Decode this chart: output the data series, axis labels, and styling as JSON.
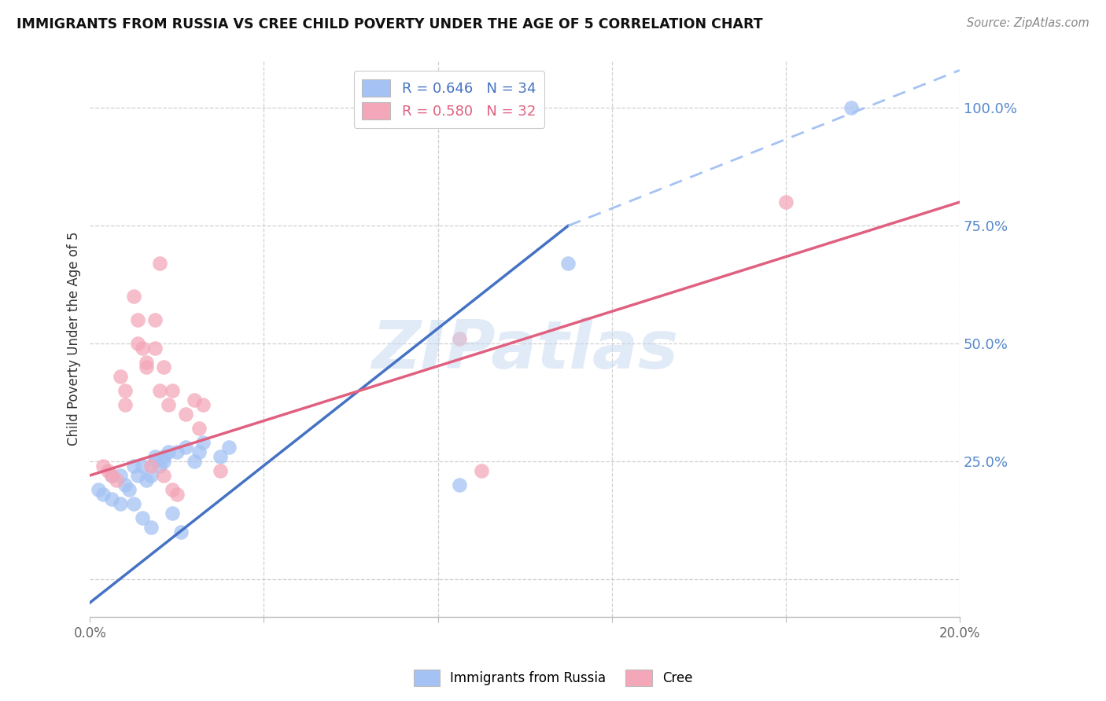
{
  "title": "IMMIGRANTS FROM RUSSIA VS CREE CHILD POVERTY UNDER THE AGE OF 5 CORRELATION CHART",
  "source": "Source: ZipAtlas.com",
  "ylabel": "Child Poverty Under the Age of 5",
  "legend_blue_r": "R = 0.646",
  "legend_blue_n": "N = 34",
  "legend_pink_r": "R = 0.580",
  "legend_pink_n": "N = 32",
  "blue_color": "#a4c2f4",
  "pink_color": "#f4a7b9",
  "blue_line_color": "#4472c4",
  "pink_line_color": "#e06080",
  "dashed_line_color": "#a4c2f4",
  "blue_scatter_x": [
    0.2,
    0.3,
    0.5,
    0.5,
    0.7,
    0.7,
    0.8,
    0.9,
    1.0,
    1.0,
    1.1,
    1.2,
    1.2,
    1.3,
    1.4,
    1.4,
    1.5,
    1.5,
    1.6,
    1.7,
    1.7,
    1.8,
    1.9,
    2.0,
    2.1,
    2.2,
    2.4,
    2.5,
    2.6,
    3.0,
    3.2,
    8.5,
    11.0,
    17.5
  ],
  "blue_scatter_y": [
    19,
    18,
    22,
    17,
    22,
    16,
    20,
    19,
    24,
    16,
    22,
    24,
    13,
    21,
    22,
    11,
    26,
    25,
    24,
    26,
    25,
    27,
    14,
    27,
    10,
    28,
    25,
    27,
    29,
    26,
    28,
    20,
    67,
    100
  ],
  "pink_scatter_x": [
    0.3,
    0.4,
    0.5,
    0.6,
    0.7,
    0.8,
    0.8,
    1.0,
    1.1,
    1.1,
    1.2,
    1.3,
    1.3,
    1.4,
    1.5,
    1.5,
    1.6,
    1.6,
    1.7,
    1.7,
    1.8,
    1.9,
    1.9,
    2.0,
    2.2,
    2.4,
    2.5,
    2.6,
    3.0,
    8.5,
    9.0,
    16.0
  ],
  "pink_scatter_y": [
    24,
    23,
    22,
    21,
    43,
    40,
    37,
    60,
    55,
    50,
    49,
    46,
    45,
    24,
    55,
    49,
    67,
    40,
    45,
    22,
    37,
    40,
    19,
    18,
    35,
    38,
    32,
    37,
    23,
    51,
    23,
    80
  ],
  "blue_line_x0": 0.0,
  "blue_line_y0": -5.0,
  "blue_line_x1": 11.0,
  "blue_line_y1": 75.0,
  "blue_dash_x0": 11.0,
  "blue_dash_y0": 75.0,
  "blue_dash_x1": 20.0,
  "blue_dash_y1": 108.0,
  "pink_line_x0": 0.0,
  "pink_line_y0": 22.0,
  "pink_line_x1": 20.0,
  "pink_line_y1": 80.0,
  "xlim": [
    0.0,
    20.0
  ],
  "ylim": [
    -8.0,
    110.0
  ],
  "xtick_positions": [
    0.0,
    4.0,
    8.0,
    12.0,
    16.0,
    20.0
  ],
  "xtick_labels": [
    "0.0%",
    "",
    "",
    "",
    "",
    "20.0%"
  ],
  "ytick_right_positions": [
    25.0,
    50.0,
    75.0,
    100.0
  ],
  "ytick_right_labels": [
    "25.0%",
    "50.0%",
    "75.0%",
    "100.0%"
  ],
  "grid_h_positions": [
    0.0,
    25.0,
    50.0,
    75.0,
    100.0
  ],
  "grid_v_positions": [
    0.0,
    4.0,
    8.0,
    12.0,
    16.0,
    20.0
  ],
  "background_color": "#ffffff",
  "grid_color": "#d0d0d0"
}
